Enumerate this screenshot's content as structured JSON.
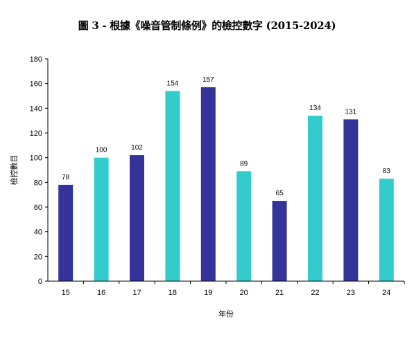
{
  "chart_data": {
    "type": "bar",
    "title": "圖 3 - 根據《噪音管制條例》的檢控數字 (2015-2024)",
    "xlabel": "年份",
    "ylabel": "檢控數目",
    "categories": [
      "15",
      "16",
      "17",
      "18",
      "19",
      "20",
      "21",
      "22",
      "23",
      "24"
    ],
    "values": [
      78,
      100,
      102,
      154,
      157,
      89,
      65,
      134,
      131,
      83
    ],
    "bar_colors": [
      "#333399",
      "#33CCCC",
      "#333399",
      "#33CCCC",
      "#333399",
      "#33CCCC",
      "#333399",
      "#33CCCC",
      "#333399",
      "#33CCCC"
    ],
    "ylim": [
      0,
      180
    ],
    "yticks": [
      0,
      20,
      40,
      60,
      80,
      100,
      120,
      140,
      160,
      180
    ],
    "grid": false,
    "legend": "none"
  }
}
